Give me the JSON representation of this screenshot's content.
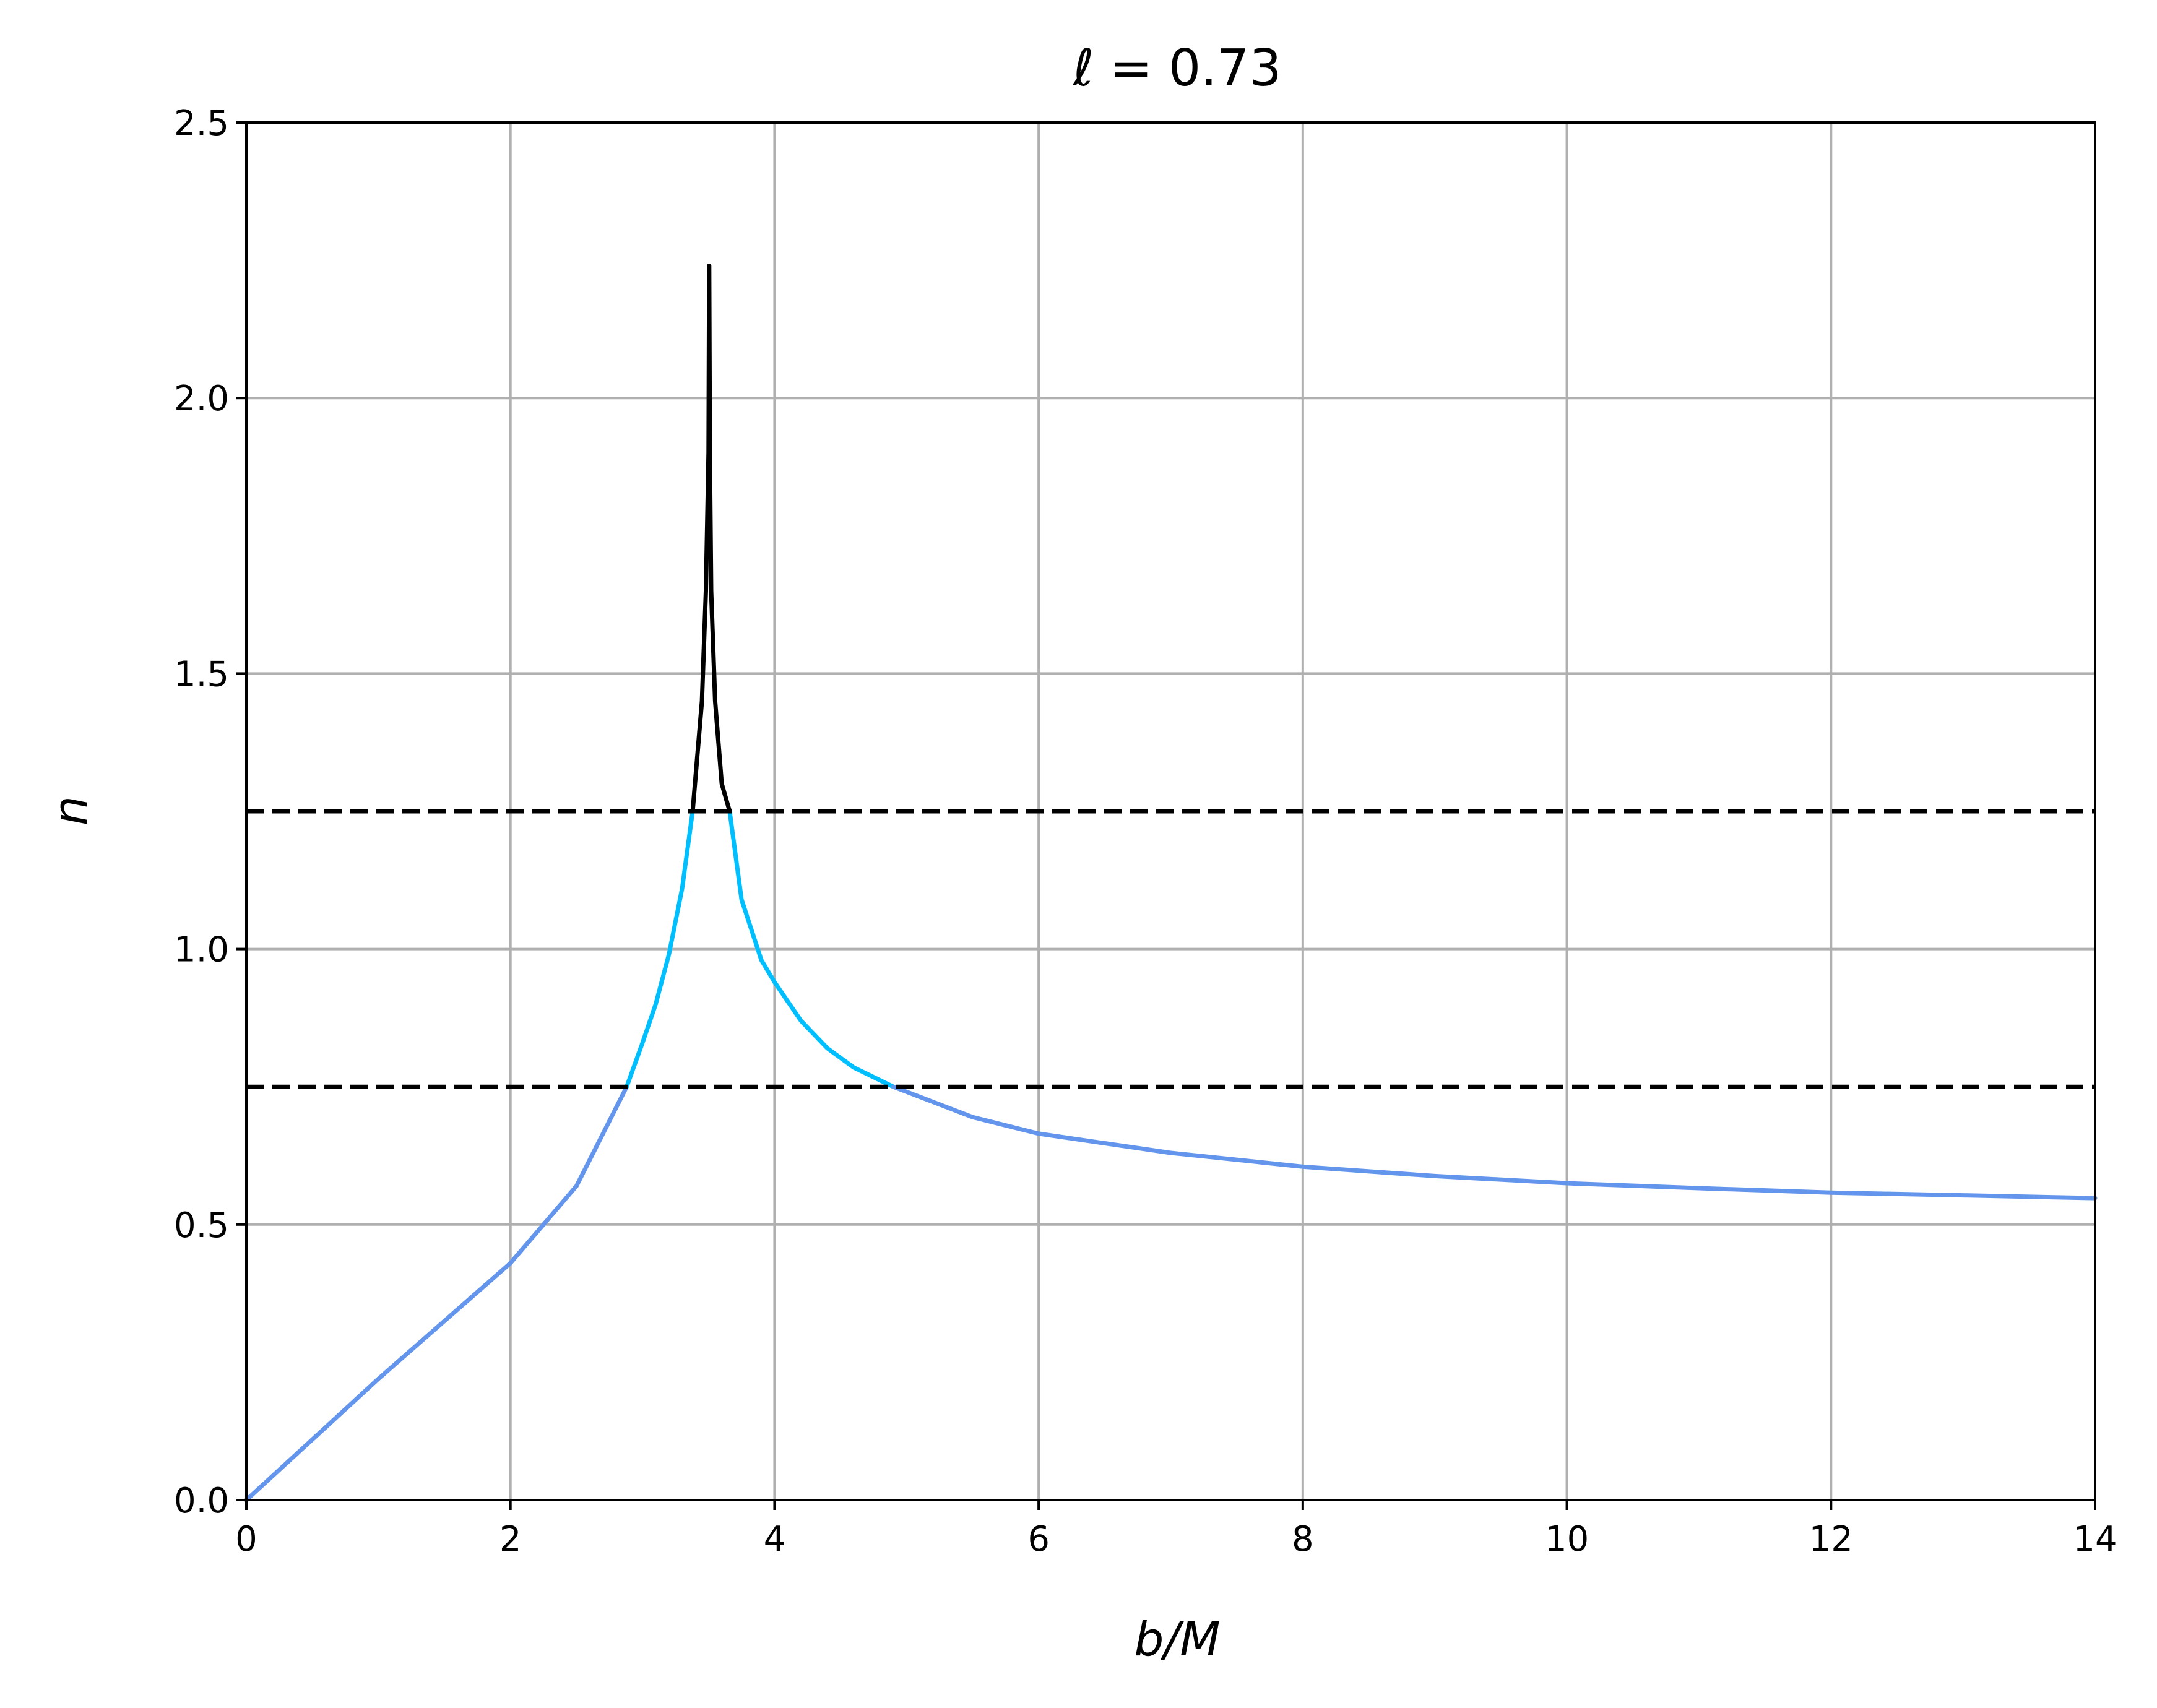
{
  "chart_data": {
    "type": "line",
    "title": "ℓ = 0.73",
    "xlabel": "b/M",
    "ylabel": "n",
    "xlim": [
      0,
      14
    ],
    "ylim": [
      0,
      2.5
    ],
    "x_ticks": [
      "0",
      "2",
      "4",
      "6",
      "8",
      "10",
      "12",
      "14"
    ],
    "y_ticks": [
      "0.0",
      "0.5",
      "1.0",
      "1.5",
      "2.0",
      "2.5"
    ],
    "grid": true,
    "colors": {
      "direct": "#6495ed",
      "lensed": "#00bfff",
      "photon_ring": "#000000",
      "threshold": "#000000",
      "grid": "#b0b0b0"
    },
    "series": [
      {
        "key": "direct",
        "color": "#6495ed",
        "x": [
          0.0,
          0.5,
          1.0,
          1.5,
          2.0,
          2.5,
          2.88
        ],
        "y": [
          0.0,
          0.11,
          0.22,
          0.325,
          0.43,
          0.57,
          0.75
        ]
      },
      {
        "key": "lensed",
        "color": "#00bfff",
        "x": [
          2.88,
          3.0,
          3.1,
          3.2,
          3.3,
          3.38
        ],
        "y": [
          0.75,
          0.83,
          0.9,
          0.99,
          1.11,
          1.25
        ]
      },
      {
        "key": "photon_ring",
        "color": "#000000",
        "x": [
          3.38,
          3.45,
          3.48,
          3.5,
          3.505,
          3.51,
          3.52,
          3.55,
          3.6,
          3.66
        ],
        "y": [
          1.25,
          1.45,
          1.65,
          1.9,
          2.24,
          1.9,
          1.65,
          1.45,
          1.3,
          1.25
        ]
      },
      {
        "key": "lensed",
        "color": "#00bfff",
        "x": [
          3.66,
          3.75,
          3.9,
          4.0,
          4.2,
          4.4,
          4.6,
          4.9
        ],
        "y": [
          1.25,
          1.09,
          0.98,
          0.94,
          0.87,
          0.82,
          0.785,
          0.75
        ]
      },
      {
        "key": "direct",
        "color": "#6495ed",
        "x": [
          4.9,
          5.5,
          6.0,
          7.0,
          8.0,
          9.0,
          10.0,
          11.0,
          12.0,
          13.0,
          14.0
        ],
        "y": [
          0.75,
          0.695,
          0.665,
          0.63,
          0.605,
          0.588,
          0.575,
          0.566,
          0.558,
          0.553,
          0.548
        ]
      }
    ],
    "hlines": [
      {
        "y": 1.25,
        "style": "dashed",
        "color": "#000000"
      },
      {
        "y": 0.75,
        "style": "dashed",
        "color": "#000000"
      }
    ]
  }
}
